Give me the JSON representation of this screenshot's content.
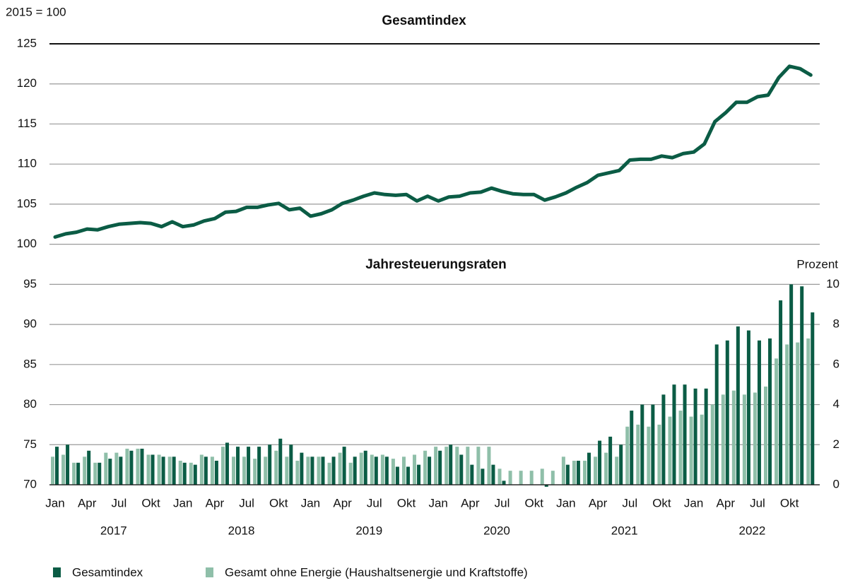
{
  "chart_data": {
    "type": "combo",
    "title": "Gesamtindex",
    "subtitle": "Jahresteuerungsraten",
    "y_label": "2015 = 100",
    "y2_label": "Prozent",
    "categories": [
      "Jan",
      null,
      null,
      "Apr",
      null,
      null,
      "Jul",
      null,
      null,
      "Okt",
      null,
      null,
      "Jan",
      null,
      null,
      "Apr",
      null,
      null,
      "Jul",
      null,
      null,
      "Okt",
      null,
      null,
      "Jan",
      null,
      null,
      "Apr",
      null,
      null,
      "Jul",
      null,
      null,
      "Okt",
      null,
      null,
      "Jan",
      null,
      null,
      "Apr",
      null,
      null,
      "Jul",
      null,
      null,
      "Okt",
      null,
      null,
      "Jan",
      null,
      null,
      "Apr",
      null,
      null,
      "Jul",
      null,
      null,
      "Okt",
      null,
      null,
      "Jan",
      null,
      null,
      "Apr",
      null,
      null,
      "Jul",
      null,
      null,
      "Okt",
      null,
      null
    ],
    "years": [
      "2017",
      "2018",
      "2019",
      "2020",
      "2021",
      "2022"
    ],
    "line": {
      "color": "#0b5c45",
      "values": [
        100.9,
        101.3,
        101.5,
        101.9,
        101.8,
        102.2,
        102.5,
        102.6,
        102.7,
        102.6,
        102.2,
        102.8,
        102.2,
        102.4,
        102.9,
        103.2,
        104.0,
        104.1,
        104.6,
        104.6,
        104.9,
        105.1,
        104.3,
        104.5,
        103.5,
        103.8,
        104.3,
        105.1,
        105.5,
        106.0,
        106.4,
        106.2,
        106.1,
        106.2,
        105.4,
        106.0,
        105.4,
        105.9,
        106.0,
        106.4,
        106.5,
        107.0,
        106.6,
        106.3,
        106.2,
        106.2,
        105.5,
        105.9,
        106.4,
        107.1,
        107.7,
        108.6,
        108.9,
        109.2,
        110.5,
        110.6,
        110.6,
        111.0,
        110.8,
        111.3,
        111.5,
        112.5,
        115.3,
        116.4,
        117.7,
        117.7,
        118.4,
        118.6,
        120.8,
        122.2,
        121.9,
        121.1
      ]
    },
    "series": [
      {
        "name": "Gesamtindex",
        "color": "#0b5c45",
        "axis": "y2",
        "values": [
          1.9,
          2.0,
          1.1,
          1.7,
          1.1,
          1.3,
          1.4,
          1.7,
          1.8,
          1.5,
          1.4,
          1.4,
          1.1,
          1.0,
          1.4,
          1.2,
          2.1,
          1.9,
          1.9,
          1.9,
          2.0,
          2.3,
          2.0,
          1.6,
          1.4,
          1.4,
          1.4,
          1.9,
          1.4,
          1.7,
          1.4,
          1.4,
          0.9,
          0.9,
          1.0,
          1.4,
          1.7,
          2.0,
          1.5,
          1.0,
          0.8,
          1.0,
          0.2,
          0.0,
          0.0,
          0.0,
          -0.1,
          0.0,
          1.0,
          1.2,
          1.6,
          2.2,
          2.4,
          2.0,
          3.7,
          4.0,
          4.0,
          4.5,
          5.0,
          5.0,
          4.8,
          4.8,
          7.0,
          7.2,
          7.9,
          7.7,
          7.2,
          7.3,
          9.2,
          10.0,
          9.9,
          8.6
        ]
      },
      {
        "name": "Gesamt ohne Energie (Haushaltsenergie und Kraftstoffe)",
        "color": "#8fbfa9",
        "axis": "y2",
        "values": [
          1.4,
          1.5,
          1.1,
          1.4,
          1.1,
          1.6,
          1.6,
          1.8,
          1.8,
          1.5,
          1.5,
          1.4,
          1.2,
          1.1,
          1.5,
          1.4,
          1.9,
          1.4,
          1.4,
          1.3,
          1.4,
          1.7,
          1.4,
          1.2,
          1.4,
          1.4,
          1.1,
          1.6,
          1.1,
          1.6,
          1.5,
          1.5,
          1.3,
          1.4,
          1.5,
          1.7,
          1.9,
          1.9,
          1.9,
          1.9,
          1.9,
          1.9,
          0.8,
          0.7,
          0.7,
          0.7,
          0.8,
          0.7,
          1.4,
          1.2,
          1.2,
          1.4,
          1.6,
          1.4,
          2.9,
          3.0,
          2.9,
          3.0,
          3.4,
          3.7,
          3.4,
          3.5,
          4.0,
          4.5,
          4.7,
          4.5,
          4.6,
          4.9,
          6.3,
          7.0,
          7.1,
          7.3
        ]
      }
    ],
    "ylim": [
      70,
      125
    ],
    "yticks": [
      70,
      75,
      80,
      85,
      90,
      95,
      100,
      105,
      110,
      115,
      120,
      125
    ],
    "y2lim": [
      0,
      22
    ],
    "y2ticks": [
      0,
      2,
      4,
      6,
      8,
      10
    ],
    "grid": true
  }
}
